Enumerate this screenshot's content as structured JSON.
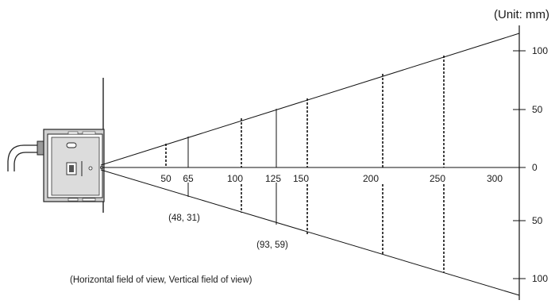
{
  "unit_label": "(Unit: mm)",
  "distance_labels": [
    "50",
    "65",
    "100",
    "125",
    "150",
    "200",
    "250",
    "300"
  ],
  "scale_labels": {
    "top_100": "100",
    "top_50": "50",
    "zero": "0",
    "bottom_50": "50",
    "bottom_100": "100"
  },
  "annotations": {
    "at_65": "(48, 31)",
    "at_125": "(93, 59)",
    "legend": "(Horizontal field of view, Vertical field of view)"
  },
  "chart_data": {
    "type": "diagram",
    "x_ticks": [
      50,
      65,
      100,
      125,
      150,
      200,
      250,
      300
    ],
    "y_ticks": [
      100,
      50,
      0,
      50,
      100
    ],
    "solid_markers_mm": [
      65,
      125
    ],
    "dashed_markers_mm": [
      50,
      100,
      150,
      200,
      250
    ],
    "field_of_view_points": [
      {
        "distance": 65,
        "horizontal": 48,
        "vertical": 31
      },
      {
        "distance": 125,
        "horizontal": 93,
        "vertical": 59
      }
    ]
  }
}
